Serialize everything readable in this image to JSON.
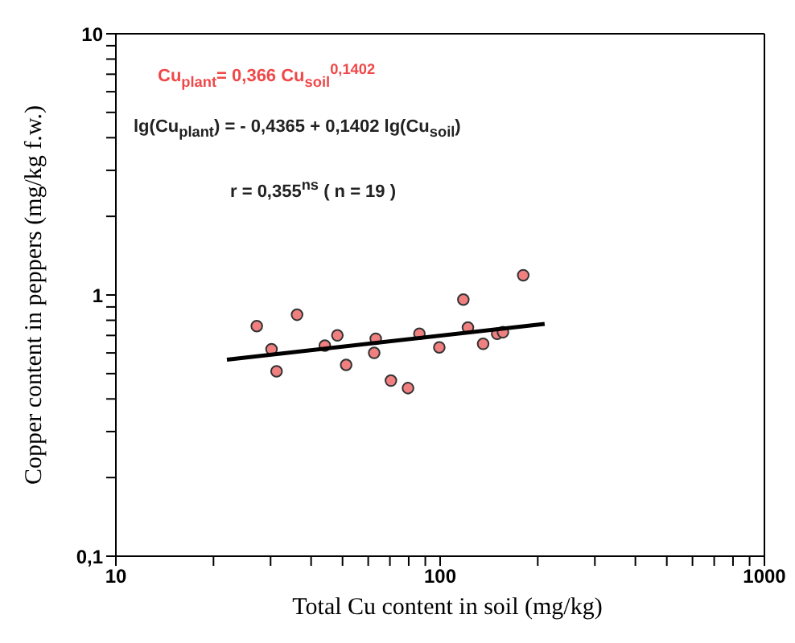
{
  "chart_data": {
    "type": "scatter",
    "xlabel": "Total Cu content in soil (mg/kg)",
    "ylabel": "Copper content in peppers (mg/kg f.w.)",
    "annotations": [
      "Cu$_{plant}$= 0,366 Cu$_{soil}$$^{0,1402}$",
      "lg(Cu$_{plant}$) = - 0,4365 + 0,1402 lg(Cu$_{soil}$)",
      "r = 0,355$^{ns}$  ( n = 19 )"
    ],
    "log": "xy",
    "marker": "circle",
    "xlim": [
      10,
      1000
    ],
    "ylim": [
      0.1,
      10
    ],
    "xticks": [
      10,
      {
        "value": 20,
        "label": null
      },
      {
        "value": 30,
        "label": null
      },
      {
        "value": 40,
        "label": null
      },
      {
        "value": 50,
        "label": null
      },
      {
        "value": 60,
        "label": null
      },
      {
        "value": 70,
        "label": null
      },
      {
        "value": 80,
        "label": null
      },
      {
        "value": 90,
        "label": null
      },
      100,
      {
        "value": 200,
        "label": null
      },
      {
        "value": 300,
        "label": null
      },
      {
        "value": 400,
        "label": null
      },
      {
        "value": 500,
        "label": null
      },
      {
        "value": 600,
        "label": null
      },
      {
        "value": 700,
        "label": null
      },
      {
        "value": 800,
        "label": null
      },
      {
        "value": 900,
        "label": null
      },
      1000
    ],
    "yticks": [
      {
        "value": 0.1,
        "label": "0,1"
      },
      {
        "value": 0.2,
        "label": null
      },
      {
        "value": 0.3,
        "label": null
      },
      {
        "value": 0.4,
        "label": null
      },
      {
        "value": 0.5,
        "label": null
      },
      {
        "value": 0.6,
        "label": null
      },
      {
        "value": 0.7,
        "label": null
      },
      {
        "value": 0.8,
        "label": null
      },
      {
        "value": 0.9,
        "label": null
      },
      1,
      {
        "value": 2,
        "label": null
      },
      {
        "value": 3,
        "label": null
      },
      {
        "value": 4,
        "label": null
      },
      {
        "value": 5,
        "label": null
      },
      {
        "value": 6,
        "label": null
      },
      {
        "value": 7,
        "label": null
      },
      {
        "value": 8,
        "label": null
      },
      {
        "value": 9,
        "label": null
      },
      10
    ],
    "series": [
      {
        "color": "#f08080",
        "x": [
          27.2,
          30.2,
          31.3,
          36.2,
          44.1,
          48.2,
          51.3,
          63.3,
          62.6,
          70.5,
          79.6,
          86.3,
          99.4,
          117.9,
          121.8,
          135.7,
          149.9,
          156.2,
          180.4
        ],
        "values": [
          0.76,
          0.62,
          0.51,
          0.84,
          0.64,
          0.7,
          0.54,
          0.68,
          0.6,
          0.47,
          0.44,
          0.71,
          0.63,
          0.96,
          0.75,
          0.65,
          0.71,
          0.72,
          1.19
        ]
      },
      {
        "type": "line",
        "color": "#000000",
        "x": [
          22,
          210
        ],
        "values": [
          0.565,
          0.775
        ],
        "line_style": "solid",
        "marker": "none"
      }
    ]
  }
}
